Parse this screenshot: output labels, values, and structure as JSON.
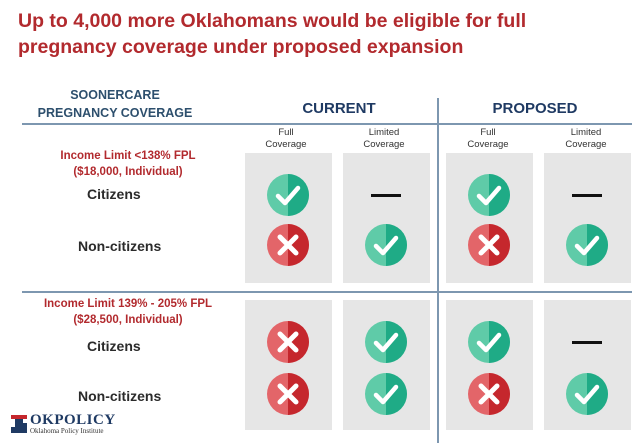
{
  "title": "Up to 4,000 more Oklahomans would be eligible for full pregnancy coverage under proposed expansion",
  "corner_label_1": "SOONERCARE",
  "corner_label_2": "PREGNANCY COVERAGE",
  "groups": {
    "current": "CURRENT",
    "proposed": "PROPOSED"
  },
  "column_headers": {
    "full_1": "Full",
    "full_2": "Coverage",
    "limited_1": "Limited",
    "limited_2": "Coverage"
  },
  "sections": [
    {
      "label_1": "Income Limit <138% FPL",
      "label_2": "($18,000, Individual)",
      "rows": [
        {
          "label": "Citizens",
          "current_full": "check",
          "current_limited": "dash",
          "proposed_full": "check",
          "proposed_limited": "dash"
        },
        {
          "label": "Non-citizens",
          "current_full": "x",
          "current_limited": "check",
          "proposed_full": "x",
          "proposed_limited": "check"
        }
      ]
    },
    {
      "label_1": "Income Limit 139% - 205% FPL",
      "label_2": "($28,500, Individual)",
      "rows": [
        {
          "label": "Citizens",
          "current_full": "x",
          "current_limited": "check",
          "proposed_full": "check",
          "proposed_limited": "dash"
        },
        {
          "label": "Non-citizens",
          "current_full": "x",
          "current_limited": "check",
          "proposed_full": "x",
          "proposed_limited": "check"
        }
      ]
    }
  ],
  "logo": {
    "main": "OKPOLICY",
    "sub": "Oklahoma Policy Institute"
  },
  "colors": {
    "title": "#b22a2e",
    "check_dark": "#1fab86",
    "check_light": "#5fcba8",
    "x_dark": "#c5272d",
    "x_light": "#e36569",
    "cell_bg": "#e6e6e6",
    "header": "#1f3a63"
  }
}
